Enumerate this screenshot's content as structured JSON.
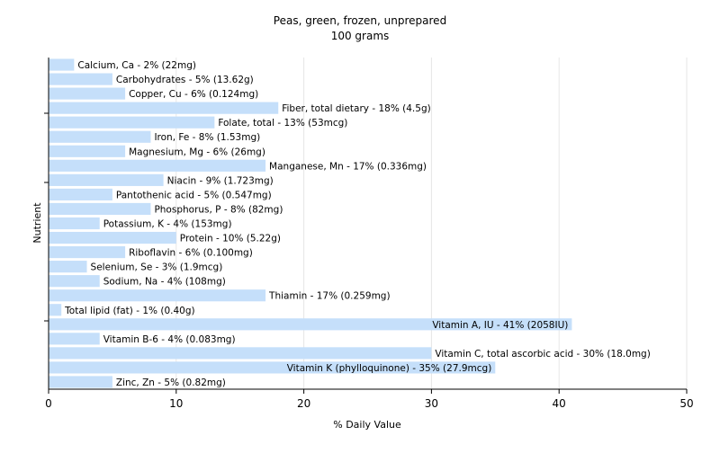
{
  "chart_data": {
    "type": "bar",
    "orientation": "horizontal",
    "title": "Peas, green, frozen, unprepared",
    "subtitle": "100 grams",
    "xlabel": "% Daily Value",
    "ylabel": "Nutrient",
    "xlim": [
      0,
      50
    ],
    "xticks": [
      "0",
      "10",
      "20",
      "30",
      "40",
      "50"
    ],
    "grid": "vertical",
    "bar_color": "#c5dffa",
    "categories": [
      "Calcium, Ca - 2% (22mg)",
      "Carbohydrates - 5% (13.62g)",
      "Copper, Cu - 6% (0.124mg)",
      "Fiber, total dietary - 18% (4.5g)",
      "Folate, total - 13% (53mcg)",
      "Iron, Fe - 8% (1.53mg)",
      "Magnesium, Mg - 6% (26mg)",
      "Manganese, Mn - 17% (0.336mg)",
      "Niacin - 9% (1.723mg)",
      "Pantothenic acid - 5% (0.547mg)",
      "Phosphorus, P - 8% (82mg)",
      "Potassium, K - 4% (153mg)",
      "Protein - 10% (5.22g)",
      "Riboflavin - 6% (0.100mg)",
      "Selenium, Se - 3% (1.9mcg)",
      "Sodium, Na - 4% (108mg)",
      "Thiamin - 17% (0.259mg)",
      "Total lipid (fat) - 1% (0.40g)",
      "Vitamin A, IU - 41% (2058IU)",
      "Vitamin B-6 - 4% (0.083mg)",
      "Vitamin C, total ascorbic acid - 30% (18.0mg)",
      "Vitamin K (phylloquinone) - 35% (27.9mcg)",
      "Zinc, Zn - 5% (0.82mg)"
    ],
    "values": [
      2,
      5,
      6,
      18,
      13,
      8,
      6,
      17,
      9,
      5,
      8,
      4,
      10,
      6,
      3,
      4,
      17,
      1,
      41,
      4,
      30,
      35,
      5
    ]
  }
}
